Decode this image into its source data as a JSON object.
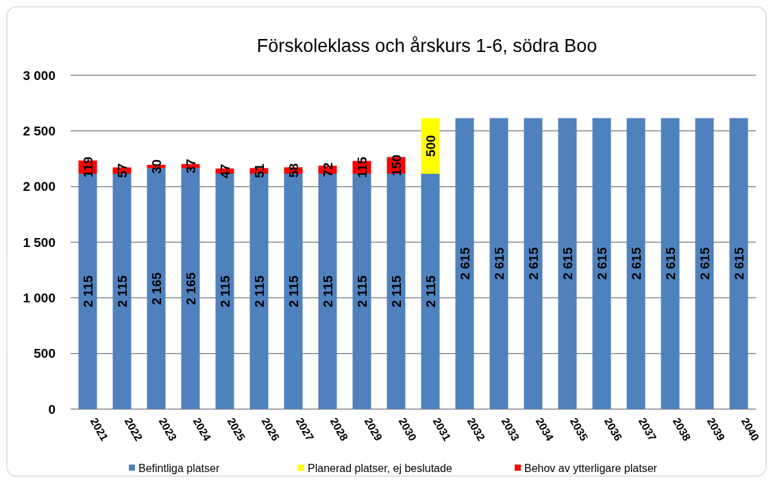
{
  "chart_data": {
    "type": "bar",
    "title": "Förskoleklass och årskurs 1-6,   södra Boo",
    "stacked": true,
    "grid": "y",
    "legend": "bottom",
    "categories": [
      "2021",
      "2022",
      "2023",
      "2024",
      "2025",
      "2026",
      "2027",
      "2028",
      "2029",
      "2030",
      "2031",
      "2032",
      "2033",
      "2034",
      "2035",
      "2036",
      "2037",
      "2038",
      "2039",
      "2040"
    ],
    "ylim": [
      0,
      3000
    ],
    "yticks": [
      {
        "value": 0,
        "label": "0"
      },
      {
        "value": 500,
        "label": "500"
      },
      {
        "value": 1000,
        "label": "1 000"
      },
      {
        "value": 1500,
        "label": "1 500"
      },
      {
        "value": 2000,
        "label": "2 000"
      },
      {
        "value": 2500,
        "label": "2 500"
      },
      {
        "value": 3000,
        "label": "3 000"
      }
    ],
    "series": [
      {
        "name": "Befintliga platser",
        "color": "#4f81bd",
        "values": [
          2115,
          2115,
          2165,
          2165,
          2115,
          2115,
          2115,
          2115,
          2115,
          2115,
          2115,
          2615,
          2615,
          2615,
          2615,
          2615,
          2615,
          2615,
          2615,
          2615
        ],
        "value_labels": [
          "2 115",
          "2 115",
          "2 165",
          "2 165",
          "2 115",
          "2 115",
          "2 115",
          "2 115",
          "2 115",
          "2 115",
          "2 115",
          "2 615",
          "2 615",
          "2 615",
          "2 615",
          "2 615",
          "2 615",
          "2 615",
          "2 615",
          "2 615"
        ]
      },
      {
        "name": "Planerad platser, ej beslutade",
        "color": "#ffff00",
        "values": [
          null,
          null,
          null,
          null,
          null,
          null,
          null,
          null,
          null,
          null,
          500,
          null,
          null,
          null,
          null,
          null,
          null,
          null,
          null,
          null
        ],
        "value_labels": [
          null,
          null,
          null,
          null,
          null,
          null,
          null,
          null,
          null,
          null,
          "500",
          null,
          null,
          null,
          null,
          null,
          null,
          null,
          null,
          null
        ]
      },
      {
        "name": "Behov av ytterligare platser",
        "color": "#ff0000",
        "values": [
          119,
          57,
          30,
          37,
          47,
          51,
          58,
          72,
          115,
          150,
          null,
          null,
          null,
          null,
          null,
          null,
          null,
          null,
          null,
          null
        ],
        "value_labels": [
          "119",
          "57",
          "30",
          "37",
          "47",
          "51",
          "58",
          "72",
          "115",
          "150",
          null,
          null,
          null,
          null,
          null,
          null,
          null,
          null,
          null,
          null
        ]
      }
    ]
  }
}
